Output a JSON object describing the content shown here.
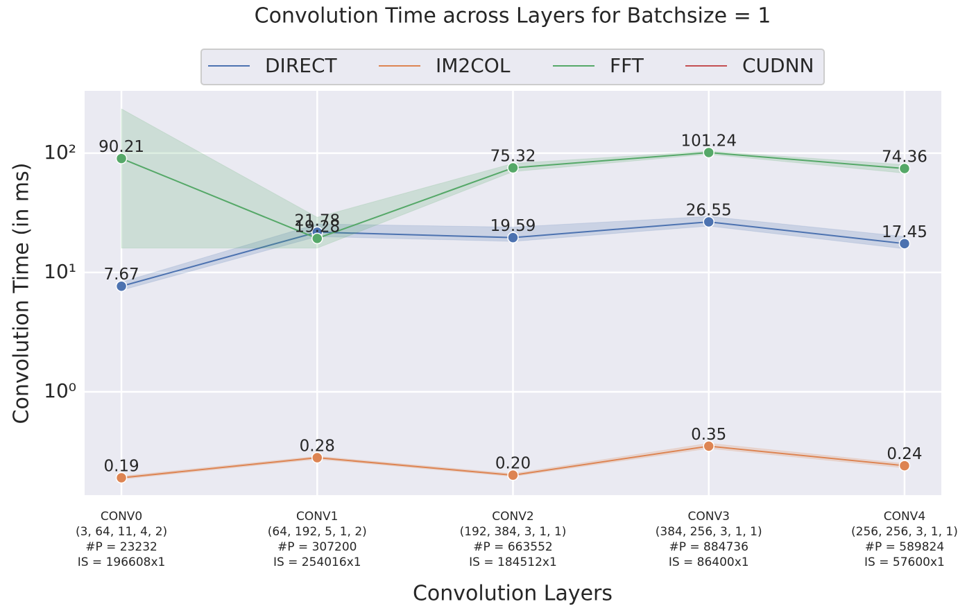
{
  "chart_data": {
    "type": "line",
    "title": "Convolution Time across Layers for Batchsize = 1",
    "x_label": "Convolution Layers",
    "y_label": "Convolution Time (in ms)",
    "categories": [
      "CONV0\n(3, 64, 11, 4, 2)\n#P = 23232\nIS = 196608x1",
      "CONV1\n(64, 192, 5, 1, 2)\n#P = 307200\nIS = 254016x1",
      "CONV2\n(192, 384, 3, 1, 1)\n#P = 663552\nIS = 184512x1",
      "CONV3\n(384, 256, 3, 1, 1)\n#P = 884736\nIS = 86400x1",
      "CONV4\n(256, 256, 3, 1, 1)\n#P = 589824\nIS = 57600x1"
    ],
    "series": [
      {
        "name": "DIRECT",
        "color": "#4c72b0",
        "values": [
          7.67,
          21.78,
          19.59,
          26.55,
          17.45
        ],
        "value_labels": [
          "7.67",
          "21.78",
          "19.59",
          "26.55",
          "17.45"
        ],
        "band_lower": [
          7.1,
          20.0,
          18.2,
          24.5,
          15.8
        ],
        "band_upper": [
          8.3,
          25.5,
          24.0,
          29.5,
          20.0
        ]
      },
      {
        "name": "IM2COL",
        "color": "#dd8452",
        "values": [
          0.19,
          0.28,
          0.2,
          0.35,
          0.24
        ],
        "value_labels": [
          "0.19",
          "0.28",
          "0.20",
          "0.35",
          "0.24"
        ],
        "band_lower": [
          0.185,
          0.272,
          0.195,
          0.335,
          0.23
        ],
        "band_upper": [
          0.196,
          0.288,
          0.206,
          0.37,
          0.25
        ]
      },
      {
        "name": "FFT",
        "color": "#55a868",
        "values": [
          90.21,
          19.28,
          75.32,
          101.24,
          74.36
        ],
        "value_labels": [
          "90.21",
          "19.28",
          "75.32",
          "101.24",
          "74.36"
        ],
        "band_lower": [
          16,
          16,
          70,
          98,
          68
        ],
        "band_upper": [
          235,
          29,
          82,
          104,
          80
        ]
      },
      {
        "name": "CUDNN",
        "color": "#c44e52",
        "values": [
          null,
          null,
          null,
          null,
          null
        ],
        "value_labels": [
          null,
          null,
          null,
          null,
          null
        ],
        "band_lower": [
          null,
          null,
          null,
          null,
          null
        ],
        "band_upper": [
          null,
          null,
          null,
          null,
          null
        ]
      }
    ],
    "log_scale": true,
    "ylim": [
      0.136,
      333
    ],
    "yticks": [
      {
        "value": 1,
        "label": "10⁰"
      },
      {
        "value": 10,
        "label": "10¹"
      },
      {
        "value": 100,
        "label": "10²"
      }
    ],
    "grid": true,
    "legend": "upper center"
  }
}
